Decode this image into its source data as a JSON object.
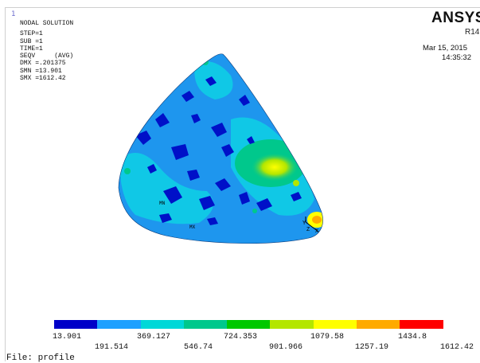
{
  "window_number": "1",
  "solution_info": {
    "title": "NODAL SOLUTION",
    "lines": [
      "STEP=1",
      "SUB =1",
      "TIME=1",
      "SEQV     (AVG)",
      "DMX =.201375",
      "SMN =13.901",
      "SMX =1612.42"
    ]
  },
  "brand": {
    "name": "ANSYS",
    "release": "R14."
  },
  "timestamp": {
    "date": "Mar 15, 2015",
    "time": "14:35:32"
  },
  "model_labels": {
    "min_marker": "MN",
    "max_marker": "MX",
    "axis_y": "Y",
    "axis_z": "Z",
    "axis_x": "X"
  },
  "legend": {
    "colors": [
      "#0000c8",
      "#1ea0ff",
      "#00d8d8",
      "#00c88c",
      "#00c800",
      "#b4e600",
      "#ffff00",
      "#ffaa00",
      "#ff0000"
    ],
    "top_values": [
      "13.901",
      "369.127",
      "724.353",
      "1079.58",
      "1434.8"
    ],
    "bottom_values": [
      "191.514",
      "546.74",
      "901.966",
      "1257.19",
      "1612.42"
    ]
  },
  "file_label": "File: profile"
}
